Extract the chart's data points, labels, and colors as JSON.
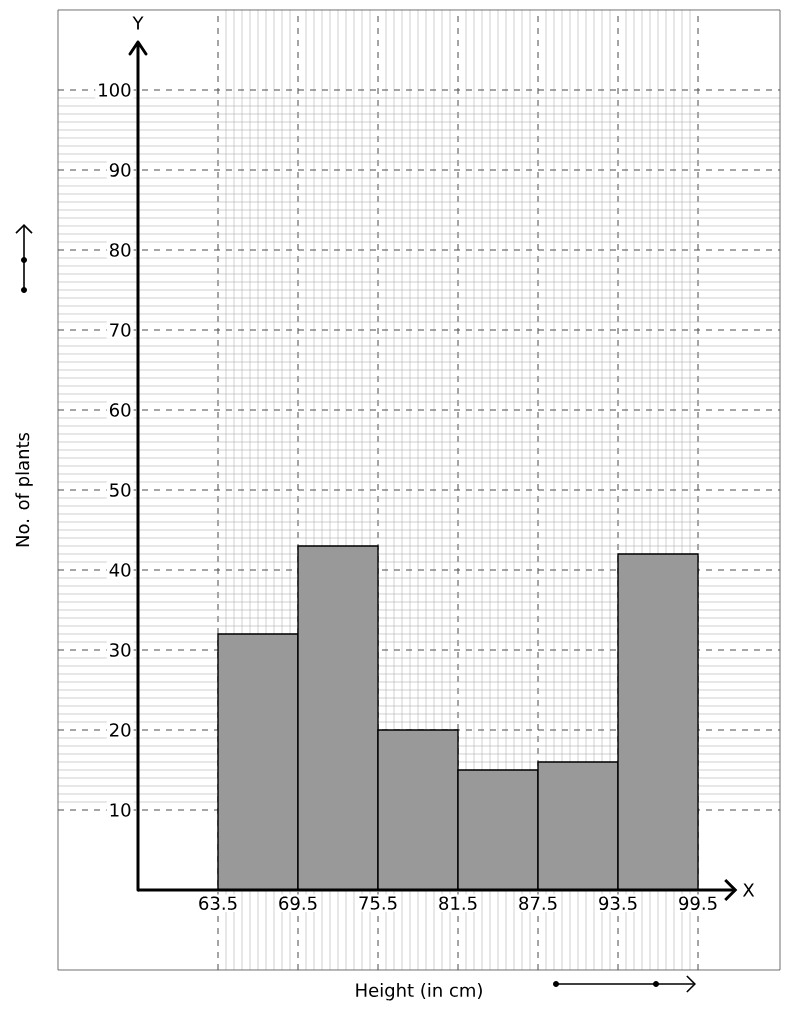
{
  "chart_data": {
    "type": "histogram",
    "xlabel": "Height (in cm)",
    "ylabel": "No. of plants",
    "bins": [
      63.5,
      69.5,
      75.5,
      81.5,
      87.5,
      93.5,
      99.5
    ],
    "values": [
      32,
      43,
      20,
      15,
      16,
      42
    ],
    "color": "#999999",
    "xlim": [
      51.5,
      105.65
    ],
    "ylim": [
      -10,
      110
    ],
    "xticks": [
      63.5,
      69.5,
      75.5,
      81.5,
      87.5,
      93.5,
      99.5
    ],
    "yticks": [
      10,
      20,
      30,
      40,
      50,
      60,
      70,
      80,
      90,
      100
    ],
    "grid": true,
    "annotations": [
      "Y",
      "X"
    ]
  }
}
